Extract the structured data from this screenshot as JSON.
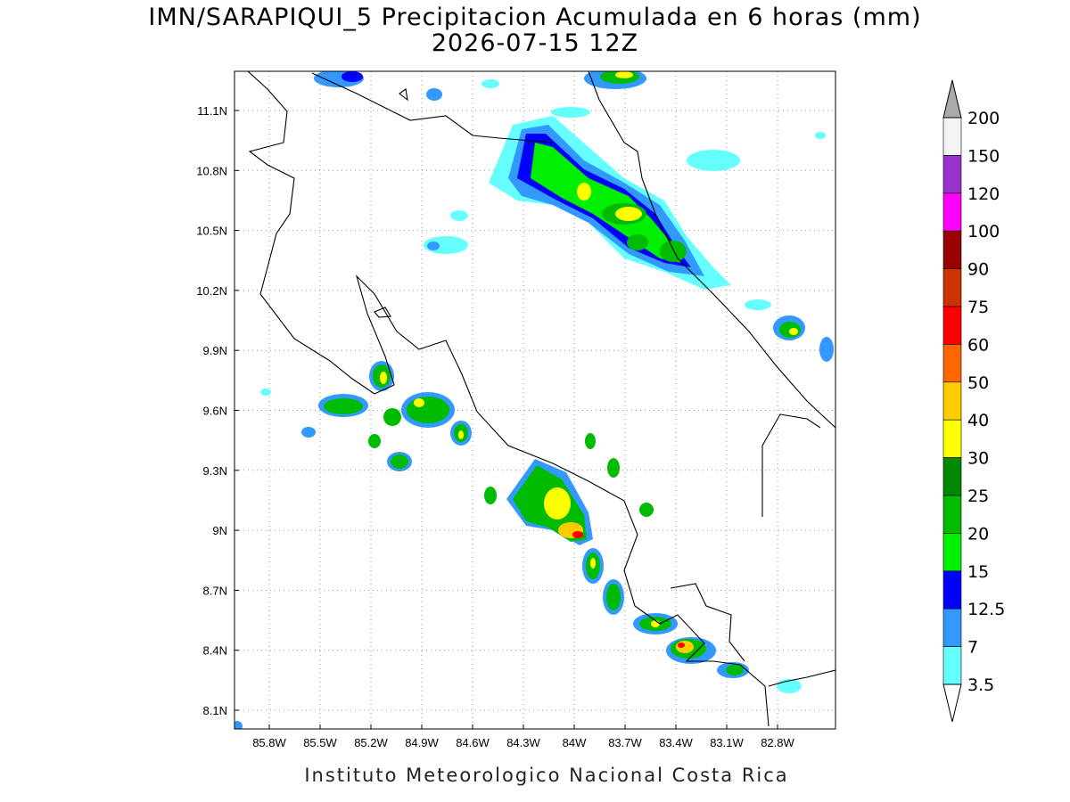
{
  "title": "IMN/SARAPIQUI_5 Precipitacion Acumulada en 6 horas (mm)",
  "subtitle": "2026-07-15 12Z",
  "map": {
    "lat_ticks": [
      "11.1N",
      "10.8N",
      "10.5N",
      "10.2N",
      "9.9N",
      "9.6N",
      "9.3N",
      "9N",
      "8.7N",
      "8.4N",
      "8.1N"
    ],
    "lon_ticks": [
      "85.8W",
      "85.5W",
      "85.2W",
      "84.9W",
      "84.6W",
      "84.3W",
      "84W",
      "83.7W",
      "83.4W",
      "83.1W",
      "82.8W"
    ],
    "grid": true
  },
  "colorbar": {
    "labels": [
      200,
      150,
      120,
      100,
      90,
      75,
      60,
      50,
      40,
      30,
      25,
      20,
      15,
      12.5,
      7,
      3.5
    ],
    "colors": [
      "#f4f4f4",
      "#9933cc",
      "#ff00ff",
      "#990000",
      "#cc3300",
      "#ff0000",
      "#ff6600",
      "#ffcc00",
      "#ffff00",
      "#008800",
      "#00bb00",
      "#00ee00",
      "#0000ff",
      "#3399ff",
      "#66ffff"
    ],
    "over_color": "#aaaaaa",
    "under_color": "#ffffff"
  },
  "footer": "Instituto Meteorologico Nacional Costa Rica"
}
